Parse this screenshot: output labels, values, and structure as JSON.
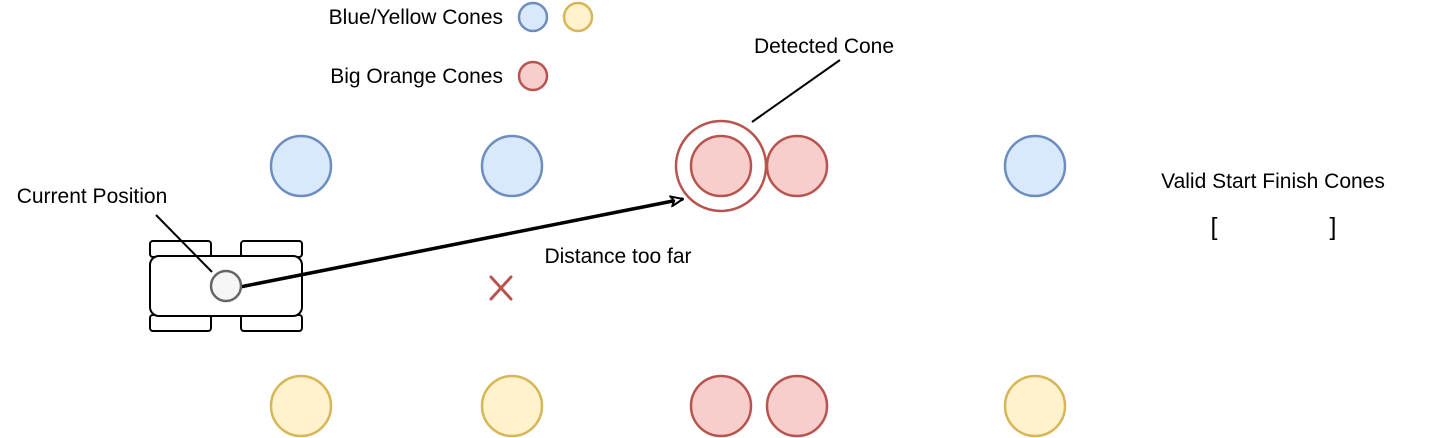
{
  "legend": {
    "blue_yellow_label": "Blue/Yellow Cones",
    "big_orange_label": "Big Orange Cones"
  },
  "labels": {
    "detected_cone": "Detected Cone",
    "current_position": "Current Position",
    "distance_too_far": "Distance too far",
    "valid_start_finish": "Valid Start Finish Cones",
    "invalid_marker": "X",
    "bracket_open": "[",
    "bracket_close": "]"
  },
  "colors": {
    "blue_fill": "#dae8fc",
    "blue_stroke": "#6c8ebf",
    "yellow_fill": "#fff2cc",
    "yellow_stroke": "#d6b656",
    "orange_fill": "#f8cecc",
    "orange_stroke": "#b85450",
    "car_stroke": "#000000",
    "position_fill": "#f5f5f5",
    "position_stroke": "#666666"
  }
}
